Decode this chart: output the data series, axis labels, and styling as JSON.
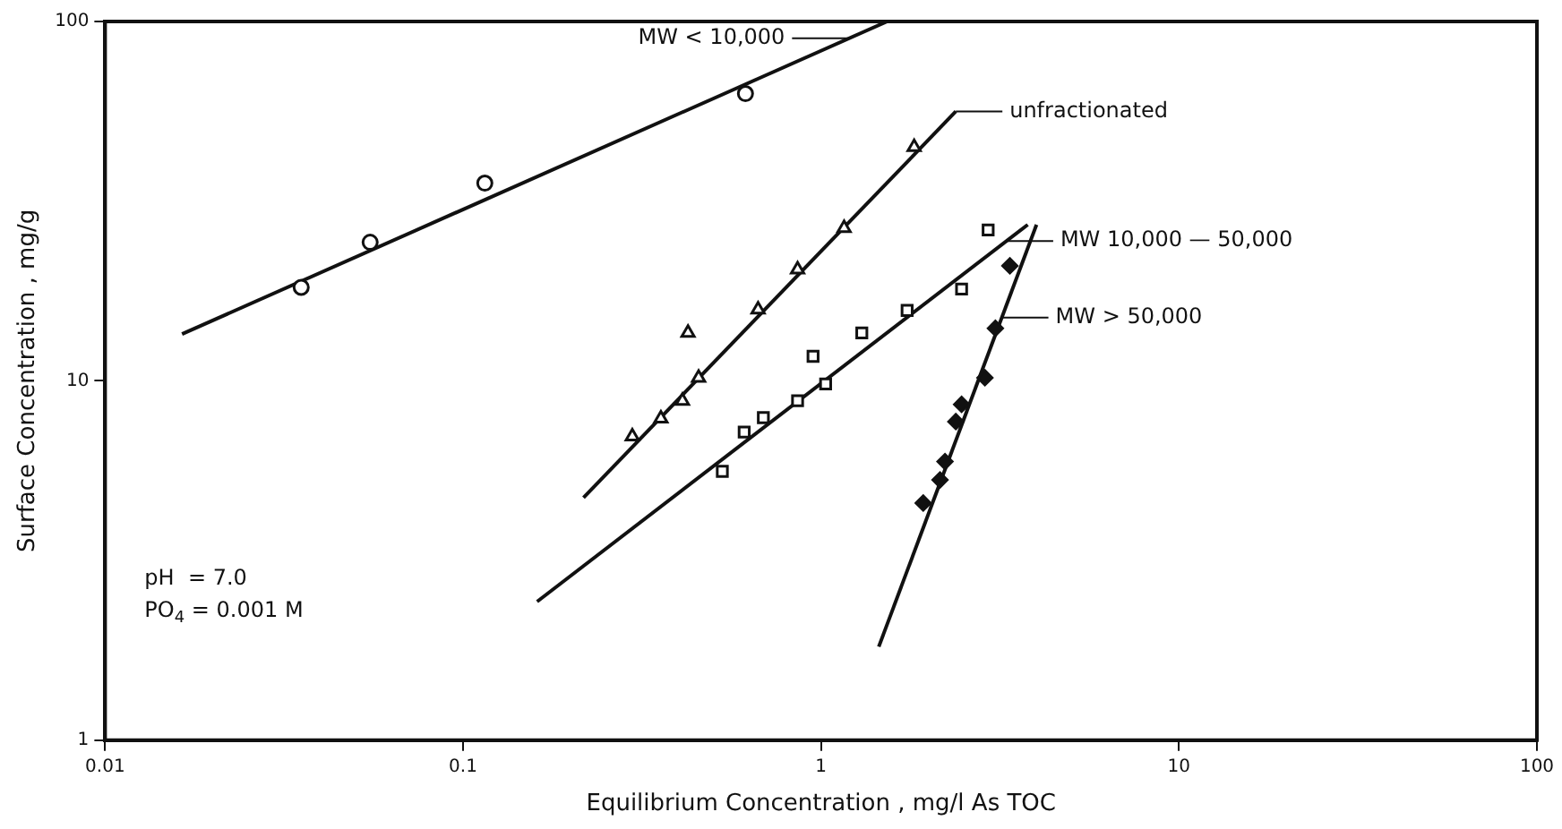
{
  "chart_data": {
    "type": "scatter",
    "xlabel": "Equilibrium Concentration , mg/l As TOC",
    "ylabel": "Surface Concentration , mg/g",
    "log": "xy",
    "grid": false,
    "legend": false,
    "xlim": [
      0.01,
      100
    ],
    "ylim": [
      1,
      100
    ],
    "xticks": [
      0.01,
      0.1,
      1,
      10,
      100
    ],
    "yticks": [
      1,
      10,
      100
    ],
    "series": [
      {
        "type": "scatter",
        "marker": "circle",
        "color": "#111111",
        "x": [
          0.0353,
          0.055,
          0.115,
          0.615
        ],
        "values": [
          18.2,
          24.3,
          35.5,
          63
        ]
      },
      {
        "type": "line",
        "marker": "none",
        "color": "#111111",
        "x": [
          0.0164,
          1.53
        ],
        "values": [
          13.5,
          100
        ]
      },
      {
        "type": "scatter",
        "marker": "triangle",
        "color": "#111111",
        "x": [
          0.297,
          0.357,
          0.41,
          0.455,
          0.425,
          0.667,
          0.86,
          1.16,
          1.82
        ],
        "values": [
          7.0,
          7.85,
          8.8,
          10.2,
          13.6,
          15.8,
          20.4,
          26.6,
          44.7
        ]
      },
      {
        "type": "line",
        "marker": "none",
        "color": "#111111",
        "x": [
          0.217,
          2.38
        ],
        "values": [
          4.73,
          56.2
        ]
      },
      {
        "type": "scatter",
        "marker": "square",
        "color": "#111111",
        "x": [
          0.53,
          0.61,
          0.69,
          0.86,
          1.03,
          0.95,
          1.3,
          1.74,
          2.47,
          2.93
        ],
        "values": [
          5.6,
          7.2,
          7.9,
          8.8,
          9.8,
          11.7,
          13.6,
          15.7,
          18,
          26.3
        ]
      },
      {
        "type": "line",
        "marker": "none",
        "color": "#111111",
        "x": [
          0.161,
          3.78
        ],
        "values": [
          2.43,
          27.2
        ]
      },
      {
        "type": "scatter",
        "marker": "diamond",
        "color": "#111111",
        "x": [
          1.93,
          2.15,
          2.22,
          2.38,
          2.47,
          2.87,
          3.07,
          3.37
        ],
        "values": [
          4.57,
          5.3,
          5.96,
          7.7,
          8.6,
          10.2,
          14,
          20.9
        ]
      },
      {
        "type": "line",
        "marker": "none",
        "color": "#111111",
        "x": [
          1.45,
          4.0
        ],
        "values": [
          1.82,
          27.2
        ]
      }
    ],
    "annotations": [
      {
        "text": "MW < 10,000",
        "x": 1.2,
        "y": 89.8
      },
      {
        "text": "unfractionated",
        "x": 2.38,
        "y": 56.2
      },
      {
        "text": "MW 10,000 — 50,000",
        "x": 3.3,
        "y": 24.5
      },
      {
        "text": "MW > 50,000",
        "x": 3.2,
        "y": 15
      },
      "pH  = 7.0",
      "PO$_{4}$ = 0.001 M"
    ]
  }
}
